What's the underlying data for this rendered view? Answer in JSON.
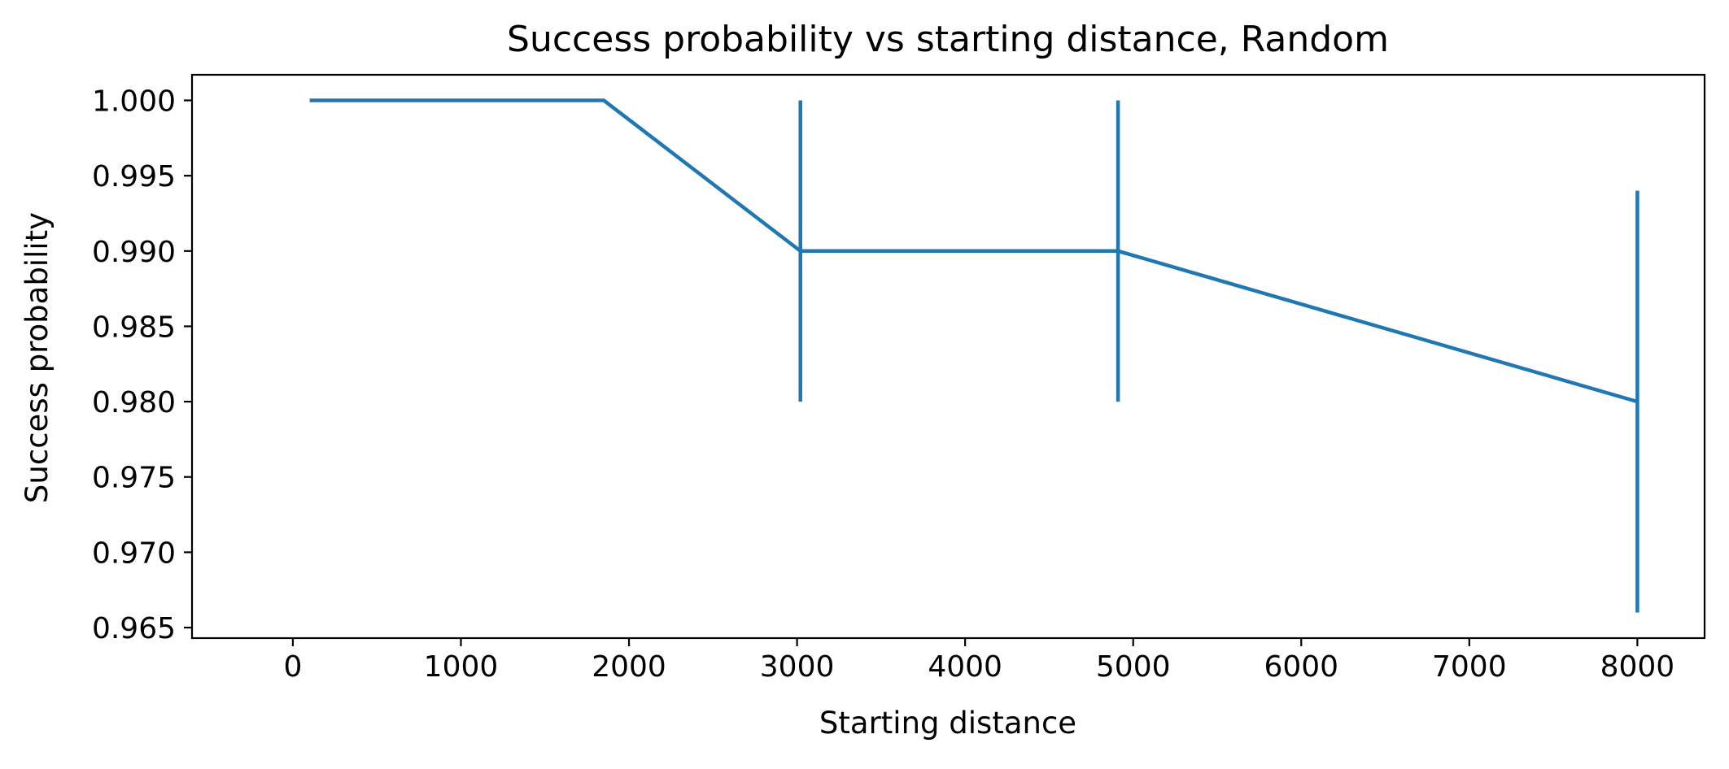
{
  "chart_data": {
    "type": "line",
    "title": "Success probability vs starting distance, Random",
    "xlabel": "Starting distance",
    "ylabel": "Success probability",
    "xlim": [
      -600,
      8400
    ],
    "ylim": [
      0.9643,
      1.0017
    ],
    "xticks": [
      0,
      1000,
      2000,
      3000,
      4000,
      5000,
      6000,
      7000,
      8000
    ],
    "xtick_labels": [
      "0",
      "1000",
      "2000",
      "3000",
      "4000",
      "5000",
      "6000",
      "7000",
      "8000"
    ],
    "yticks": [
      0.965,
      0.97,
      0.975,
      0.98,
      0.985,
      0.99,
      0.995,
      1.0
    ],
    "ytick_labels": [
      "0.965",
      "0.970",
      "0.975",
      "0.980",
      "0.985",
      "0.990",
      "0.995",
      "1.000"
    ],
    "grid": false,
    "series": [
      {
        "x": [
          100,
          1850,
          3020,
          4910,
          8000
        ],
        "y": [
          1.0,
          1.0,
          0.99,
          0.99,
          0.98
        ],
        "error_low": [
          1.0,
          1.0,
          0.98,
          0.98,
          0.966
        ],
        "error_high": [
          1.0,
          1.0,
          1.0,
          1.0,
          0.994
        ],
        "color": "#1f77b4"
      }
    ]
  }
}
